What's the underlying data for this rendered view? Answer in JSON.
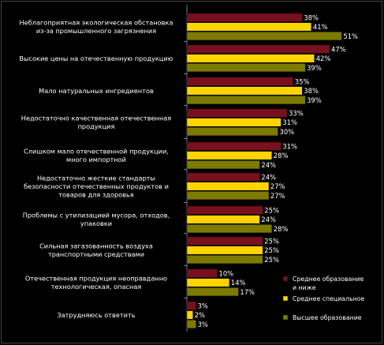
{
  "chart_data": {
    "type": "bar",
    "orientation": "horizontal",
    "categories": [
      [
        "Неблагоприятная экологическая обстановка",
        "из-за промышленного загрязнения"
      ],
      [
        "Высокие цены на отечественную продукцию"
      ],
      [
        "Мало натуральных ингредиентов"
      ],
      [
        "Недостаточно качественная отечественная",
        "продукция"
      ],
      [
        "Слишком мало отечественной продукции,",
        "много импортной"
      ],
      [
        "Недостаточно жесткие стандарты",
        "безопасности отечественных продуктов и",
        "товаров для здоровья"
      ],
      [
        "Проблемы с утилизацией мусора, отходов,",
        "упаковки"
      ],
      [
        "Сильная загазованность воздуха",
        "транспортными средствами"
      ],
      [
        "Отечественная продукция неоправданно",
        "технологическая, опасная"
      ],
      [
        "Затрудняюсь ответить"
      ]
    ],
    "series": [
      {
        "name": "Среднее образование и ниже",
        "color": "#7a0f1e",
        "values": [
          38,
          47,
          35,
          33,
          31,
          24,
          25,
          25,
          10,
          3
        ]
      },
      {
        "name": "Среднее специальное",
        "color": "#ffd400",
        "values": [
          41,
          42,
          38,
          31,
          28,
          27,
          24,
          25,
          14,
          2
        ]
      },
      {
        "name": "Высшее образование",
        "color": "#7d7a00",
        "values": [
          51,
          39,
          39,
          30,
          24,
          27,
          28,
          25,
          17,
          3
        ]
      }
    ],
    "value_labels": [
      [
        "38%",
        "41%",
        "51%"
      ],
      [
        "47%",
        "42%",
        "39%"
      ],
      [
        "35%",
        "38%",
        "39%"
      ],
      [
        "33%",
        "31%",
        "30%"
      ],
      [
        "31%",
        "28%",
        "24%"
      ],
      [
        "24%",
        "27%",
        "27%"
      ],
      [
        "25%",
        "24%",
        "28%"
      ],
      [
        "25%",
        "25%",
        "25%"
      ],
      [
        "10%",
        "14%",
        "17%"
      ],
      [
        "3%",
        "2%",
        "3%"
      ]
    ],
    "legend": {
      "placement": "bottom-right",
      "lines": [
        [
          "Среднее образование",
          "и ниже"
        ],
        [
          "Среднее специальное"
        ],
        [
          "Высшее образование"
        ]
      ]
    },
    "xlim": [
      0,
      51
    ],
    "grid": false
  }
}
